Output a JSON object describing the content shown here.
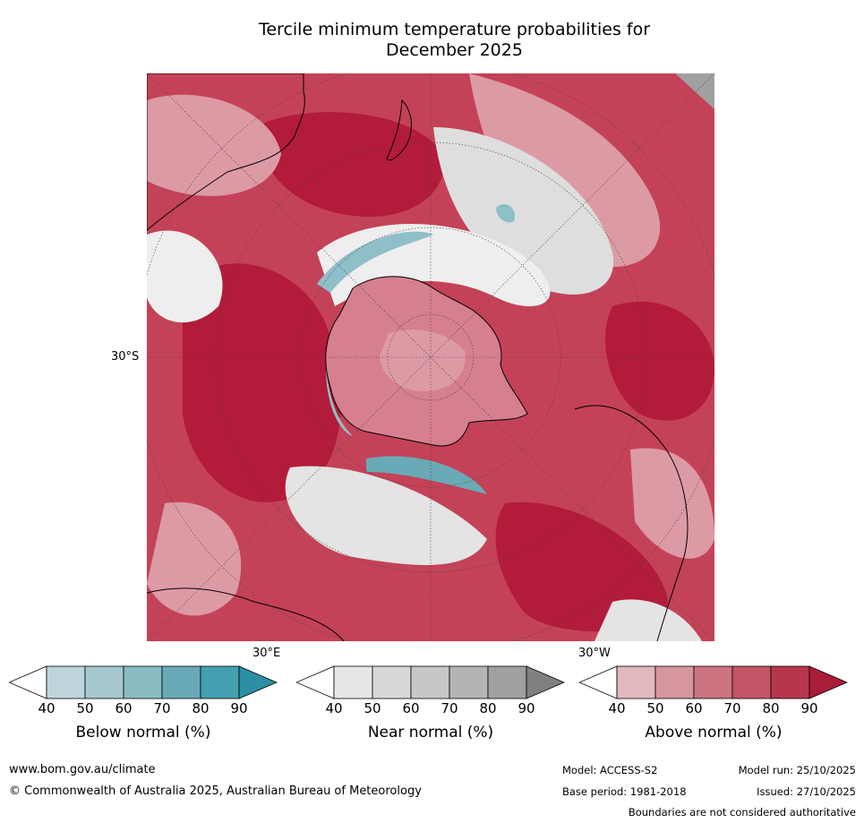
{
  "title_line1": "Tercile minimum temperature probabilities for",
  "title_line2": "December 2025",
  "map": {
    "lat_label": "30°S",
    "lon_label_e": "30°E",
    "lon_label_w": "30°W",
    "colors": {
      "ocean_warm": "#c44257",
      "ocean_strong": "#b31b3b",
      "light_pink": "#dc9aa5",
      "near_normal": "#dedede",
      "below_normal": "#8fbfc8"
    }
  },
  "legends": [
    {
      "label": "Below normal (%)",
      "ticks": [
        "40",
        "50",
        "60",
        "70",
        "80",
        "90"
      ],
      "colors": [
        "#ffffff",
        "#bdd5da",
        "#a5c8ce",
        "#8abbc3",
        "#6aaab6",
        "#43a0b1",
        "#2b8ea3"
      ]
    },
    {
      "label": "Near normal (%)",
      "ticks": [
        "40",
        "50",
        "60",
        "70",
        "80",
        "90"
      ],
      "colors": [
        "#ffffff",
        "#e6e6e6",
        "#d7d7d7",
        "#c7c7c7",
        "#b4b4b4",
        "#a0a0a0",
        "#808080"
      ]
    },
    {
      "label": "Above normal (%)",
      "ticks": [
        "40",
        "50",
        "60",
        "70",
        "80",
        "90"
      ],
      "colors": [
        "#ffffff",
        "#e3b8be",
        "#d6969f",
        "#ca7481",
        "#c35466",
        "#b8364c",
        "#a91d38"
      ]
    }
  ],
  "footer": {
    "url": "www.bom.gov.au/climate",
    "copyright": "© Commonwealth of Australia 2025, Australian Bureau of Meteorology",
    "model": "Model: ACCESS-S2",
    "model_run": "Model run: 25/10/2025",
    "base_period": "Base period: 1981-2018",
    "issued": "Issued: 27/10/2025",
    "disclaimer": "Boundaries are not considered authoritative"
  }
}
